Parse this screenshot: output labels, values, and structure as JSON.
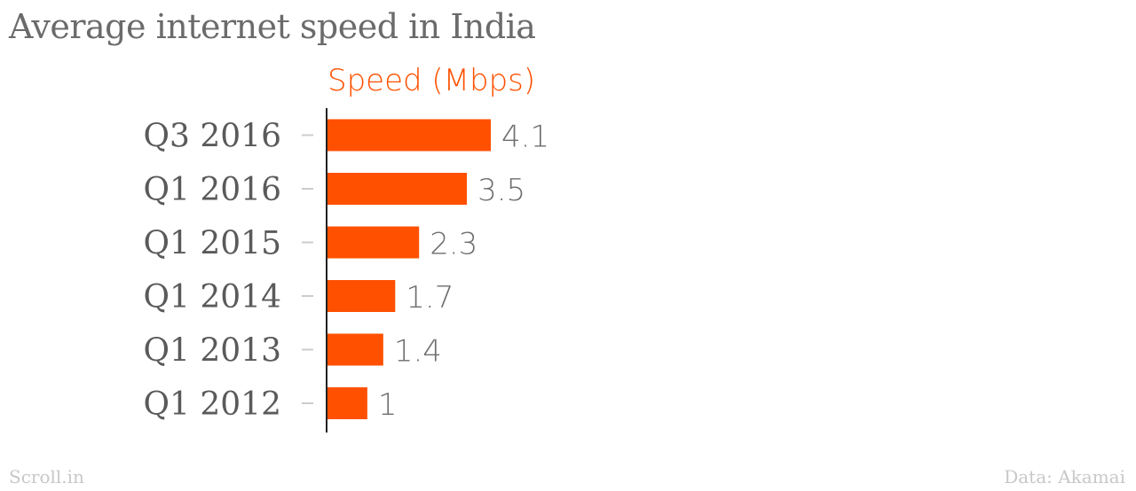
{
  "chart_data": {
    "type": "bar",
    "orientation": "horizontal",
    "title": "Average internet speed in India",
    "series_label": "Speed (Mbps)",
    "categories": [
      "Q3 2016",
      "Q1 2016",
      "Q1 2015",
      "Q1 2014",
      "Q1 2013",
      "Q1 2012"
    ],
    "values": [
      4.1,
      3.5,
      2.3,
      1.7,
      1.4,
      1
    ],
    "value_labels": [
      "4.1",
      "3.5",
      "2.3",
      "1.7",
      "1.4",
      "1"
    ],
    "xlim": [
      0,
      4.1
    ],
    "grid": false,
    "legend": "none"
  },
  "footer": {
    "source_left": "Scroll.in",
    "source_right": "Data: Akamai"
  },
  "colors": {
    "bar": "#ff5000",
    "header": "#ff5000",
    "axis": "#222222",
    "tick": "#cccccc"
  }
}
